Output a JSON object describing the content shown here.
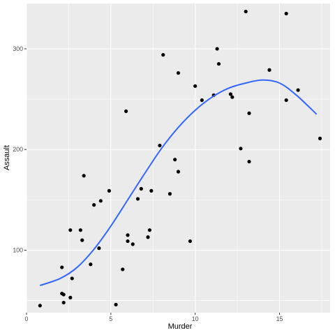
{
  "chart_data": {
    "type": "scatter",
    "title": "",
    "xlabel": "Murder",
    "ylabel": "Assault",
    "xlim": [
      0,
      18
    ],
    "ylim": [
      38,
      345
    ],
    "x_ticks": [
      0,
      5,
      10,
      15
    ],
    "x_tick_labels": [
      "0",
      "5",
      "10",
      "15"
    ],
    "y_ticks": [
      100,
      200,
      300
    ],
    "y_tick_labels": [
      "100",
      "200",
      "300"
    ],
    "grid": true,
    "legend": "none",
    "panel_color": "#ebebeb",
    "grid_color": "#ffffff",
    "point_color": "#000000",
    "smooth_color": "#3366ff",
    "points": [
      [
        0.8,
        45
      ],
      [
        2.1,
        83
      ],
      [
        2.1,
        57
      ],
      [
        2.2,
        56
      ],
      [
        2.2,
        48
      ],
      [
        2.6,
        120
      ],
      [
        2.6,
        53
      ],
      [
        2.7,
        72
      ],
      [
        3.2,
        120
      ],
      [
        3.3,
        110
      ],
      [
        3.4,
        174
      ],
      [
        3.8,
        86
      ],
      [
        4.0,
        145
      ],
      [
        4.3,
        102
      ],
      [
        4.4,
        149
      ],
      [
        4.9,
        159
      ],
      [
        5.3,
        46
      ],
      [
        5.7,
        81
      ],
      [
        5.9,
        238
      ],
      [
        6.0,
        115
      ],
      [
        6.0,
        109
      ],
      [
        6.3,
        106
      ],
      [
        6.6,
        151
      ],
      [
        6.8,
        161
      ],
      [
        7.2,
        113
      ],
      [
        7.3,
        120
      ],
      [
        7.4,
        159
      ],
      [
        7.9,
        204
      ],
      [
        8.1,
        294
      ],
      [
        8.5,
        156
      ],
      [
        8.8,
        190
      ],
      [
        9.0,
        276
      ],
      [
        9.0,
        178
      ],
      [
        9.7,
        109
      ],
      [
        10.0,
        263
      ],
      [
        10.4,
        249
      ],
      [
        11.1,
        254
      ],
      [
        11.3,
        300
      ],
      [
        11.4,
        285
      ],
      [
        12.1,
        255
      ],
      [
        12.2,
        252
      ],
      [
        12.7,
        201
      ],
      [
        13.0,
        337
      ],
      [
        13.2,
        236
      ],
      [
        13.2,
        188
      ],
      [
        14.4,
        279
      ],
      [
        15.4,
        335
      ],
      [
        15.4,
        249
      ],
      [
        16.1,
        259
      ],
      [
        17.4,
        211
      ]
    ],
    "smooth_x": [
      0.8,
      2.0,
      3.0,
      4.0,
      5.0,
      6.0,
      7.0,
      8.0,
      9.0,
      10.0,
      11.0,
      12.0,
      13.0,
      14.0,
      15.0,
      16.0,
      17.2
    ],
    "smooth_y": [
      65,
      72,
      83,
      101,
      124,
      150,
      176,
      201,
      222,
      239,
      252,
      261,
      266,
      269,
      266,
      254,
      235
    ]
  }
}
